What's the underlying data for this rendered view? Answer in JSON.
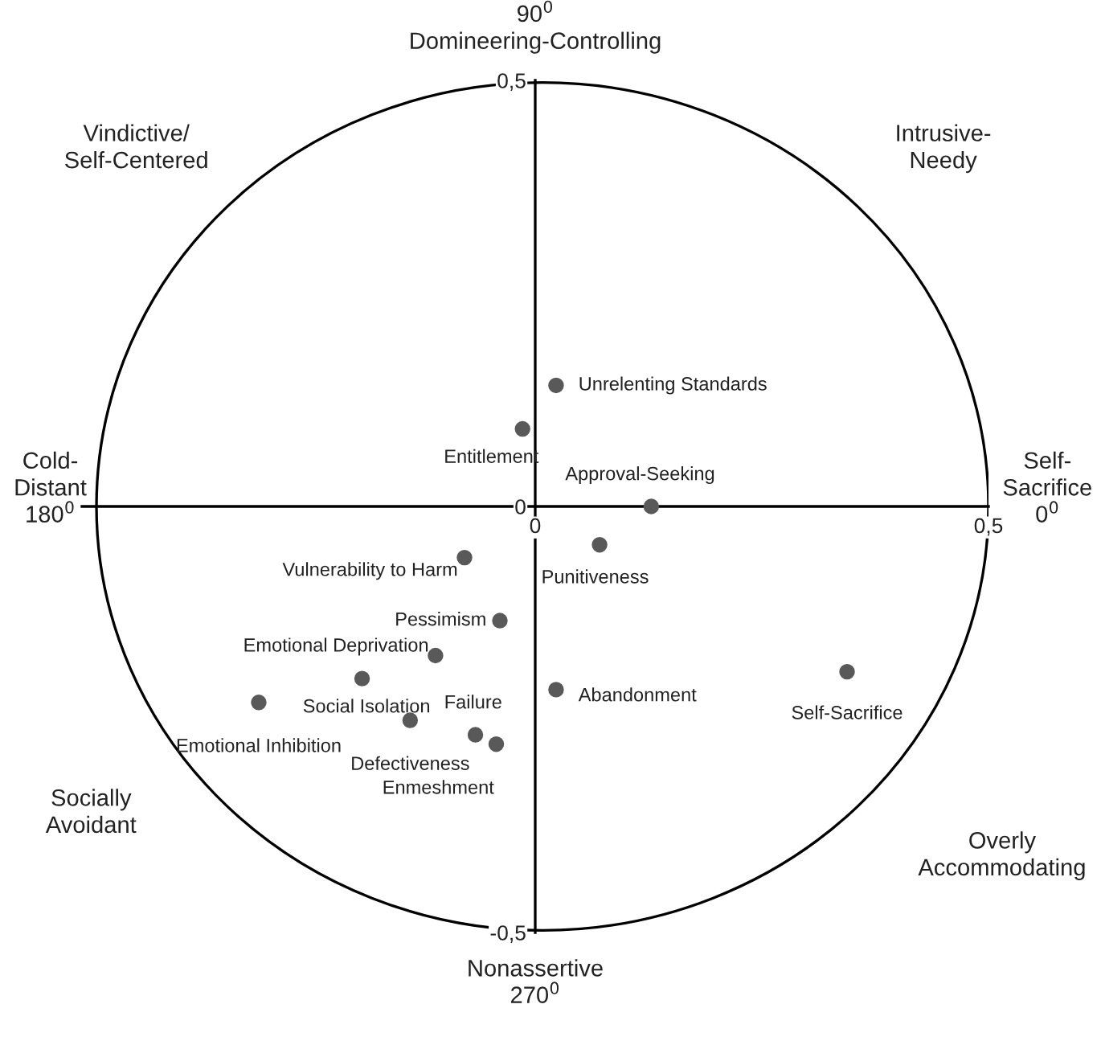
{
  "chart_data": {
    "type": "scatter",
    "x": [
      0.023,
      -0.014,
      0.128,
      0.071,
      -0.078,
      -0.039,
      -0.11,
      -0.191,
      -0.305,
      -0.138,
      -0.066,
      -0.043,
      0.023,
      0.344
    ],
    "values": [
      0.142,
      0.091,
      0.0,
      -0.045,
      -0.06,
      -0.134,
      -0.175,
      -0.202,
      -0.23,
      -0.251,
      -0.268,
      -0.279,
      -0.215,
      -0.194
    ],
    "color": "#595959",
    "marker": "circle",
    "xlim": [
      -0.5,
      0.5
    ],
    "ylim": [
      -0.5,
      0.5
    ],
    "xticks": [
      {
        "value": 0,
        "label": "0"
      },
      {
        "value": 0.5,
        "label": "0,5"
      }
    ],
    "yticks": [
      {
        "value": -0.5,
        "label": "-0,5"
      },
      {
        "value": 0,
        "label": "0"
      },
      {
        "value": 0.5,
        "label": "0,5"
      }
    ],
    "grid": false,
    "annotations": [
      {
        "text": "Unrelenting Standards",
        "x": 0.023,
        "y": 0.142
      },
      {
        "text": "Entitlement",
        "x": -0.014,
        "y": 0.091
      },
      {
        "text": "Approval-Seeking",
        "x": 0.128,
        "y": 0.0
      },
      {
        "text": "Punitiveness",
        "x": 0.071,
        "y": -0.045
      },
      {
        "text": "Vulnerability to Harm",
        "x": -0.078,
        "y": -0.06
      },
      {
        "text": "Pessimism",
        "x": -0.039,
        "y": -0.134
      },
      {
        "text": "Emotional Deprivation",
        "x": -0.11,
        "y": -0.175
      },
      {
        "text": "Social Isolation",
        "x": -0.191,
        "y": -0.202
      },
      {
        "text": "Emotional Inhibition",
        "x": -0.305,
        "y": -0.23
      },
      {
        "text": "Defectiveness",
        "x": -0.138,
        "y": -0.251
      },
      {
        "text": "Failure",
        "x": -0.066,
        "y": -0.268
      },
      {
        "text": "Enmeshment",
        "x": -0.043,
        "y": -0.279
      },
      {
        "text": "Abandonment",
        "x": 0.023,
        "y": -0.215
      },
      {
        "text": "Self-Sacrifice",
        "x": 0.344,
        "y": -0.194
      },
      "90$^{0}$\nDomineering-Controlling",
      "Intrusive-\nNeedy",
      "Self-\nSacrifice\n0$^{0}$",
      "Overly\nAccommodating",
      "Nonassertive\n270$^{0}$",
      "Socially\nAvoidant",
      "Cold-\nDistant\n180$^{0}$",
      "Vindictive/\nSelf-Centered"
    ]
  }
}
